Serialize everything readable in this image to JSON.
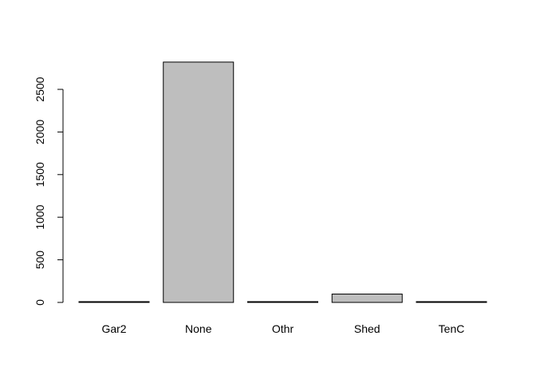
{
  "chart_data": {
    "type": "bar",
    "categories": [
      "Gar2",
      "None",
      "Othr",
      "Shed",
      "TenC"
    ],
    "values": [
      5,
      2820,
      5,
      98,
      1
    ],
    "y_ticks": [
      "0",
      "500",
      "1000",
      "1500",
      "2000",
      "2500"
    ],
    "ylim": [
      0,
      2900
    ],
    "bar_color": "#bebebe",
    "bar_stroke": "#000000",
    "grid": false,
    "legend": "none",
    "title": "",
    "xlabel": "",
    "ylabel": ""
  }
}
